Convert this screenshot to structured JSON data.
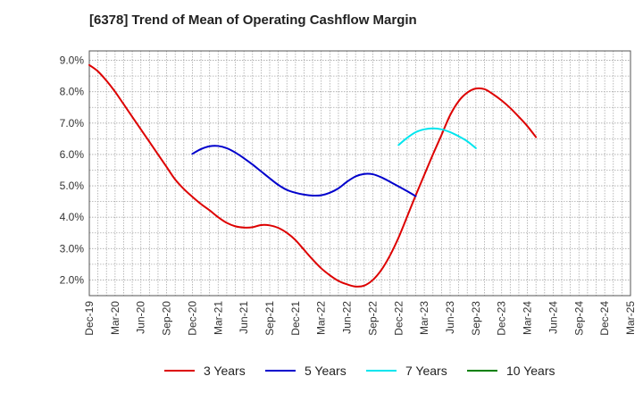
{
  "chart_data": {
    "type": "line",
    "title": "[6378]  Trend of Mean of Operating Cashflow Margin",
    "xlabel": "",
    "ylabel": "",
    "x_ticks": [
      "Dec-19",
      "Mar-20",
      "Jun-20",
      "Sep-20",
      "Dec-20",
      "Mar-21",
      "Jun-21",
      "Sep-21",
      "Dec-21",
      "Mar-22",
      "Jun-22",
      "Sep-22",
      "Dec-22",
      "Mar-23",
      "Jun-23",
      "Sep-23",
      "Dec-23",
      "Mar-24",
      "Jun-24",
      "Sep-24",
      "Dec-24",
      "Mar-25"
    ],
    "y_ticks": [
      "2.0%",
      "3.0%",
      "4.0%",
      "5.0%",
      "6.0%",
      "7.0%",
      "8.0%",
      "9.0%"
    ],
    "ylim": [
      1.5,
      9.3
    ],
    "grid": true,
    "legend_position": "bottom",
    "series": [
      {
        "name": "3 Years",
        "color": "#dd0000",
        "points": [
          [
            "Dec-19",
            8.85
          ],
          [
            "Jan-20",
            8.65
          ],
          [
            "Feb-20",
            8.35
          ],
          [
            "Mar-20",
            8.0
          ],
          [
            "Apr-20",
            7.6
          ],
          [
            "May-20",
            7.2
          ],
          [
            "Jun-20",
            6.8
          ],
          [
            "Jul-20",
            6.4
          ],
          [
            "Aug-20",
            6.0
          ],
          [
            "Sep-20",
            5.6
          ],
          [
            "Oct-20",
            5.2
          ],
          [
            "Nov-20",
            4.9
          ],
          [
            "Dec-20",
            4.65
          ],
          [
            "Jan-21",
            4.42
          ],
          [
            "Feb-21",
            4.22
          ],
          [
            "Mar-21",
            4.0
          ],
          [
            "Apr-21",
            3.82
          ],
          [
            "May-21",
            3.71
          ],
          [
            "Jun-21",
            3.67
          ],
          [
            "Jul-21",
            3.68
          ],
          [
            "Aug-21",
            3.75
          ],
          [
            "Sep-21",
            3.74
          ],
          [
            "Oct-21",
            3.66
          ],
          [
            "Nov-21",
            3.5
          ],
          [
            "Dec-21",
            3.27
          ],
          [
            "Jan-22",
            2.96
          ],
          [
            "Feb-22",
            2.65
          ],
          [
            "Mar-22",
            2.37
          ],
          [
            "Apr-22",
            2.15
          ],
          [
            "May-22",
            1.97
          ],
          [
            "Jun-22",
            1.86
          ],
          [
            "Jul-22",
            1.79
          ],
          [
            "Aug-22",
            1.82
          ],
          [
            "Sep-22",
            2.0
          ],
          [
            "Oct-22",
            2.32
          ],
          [
            "Nov-22",
            2.78
          ],
          [
            "Dec-22",
            3.35
          ],
          [
            "Jan-23",
            4.02
          ],
          [
            "Feb-23",
            4.7
          ],
          [
            "Mar-23",
            5.35
          ],
          [
            "Apr-23",
            6.0
          ],
          [
            "May-23",
            6.62
          ],
          [
            "Jun-23",
            7.25
          ],
          [
            "Jul-23",
            7.7
          ],
          [
            "Aug-23",
            7.97
          ],
          [
            "Sep-23",
            8.1
          ],
          [
            "Oct-23",
            8.08
          ],
          [
            "Nov-23",
            7.92
          ],
          [
            "Dec-23",
            7.72
          ],
          [
            "Jan-24",
            7.48
          ],
          [
            "Feb-24",
            7.2
          ],
          [
            "Mar-24",
            6.9
          ],
          [
            "Apr-24",
            6.55
          ]
        ]
      },
      {
        "name": "5 Years",
        "color": "#0000cc",
        "points": [
          [
            "Dec-20",
            6.02
          ],
          [
            "Jan-21",
            6.17
          ],
          [
            "Feb-21",
            6.26
          ],
          [
            "Mar-21",
            6.27
          ],
          [
            "Apr-21",
            6.2
          ],
          [
            "May-21",
            6.06
          ],
          [
            "Jun-21",
            5.88
          ],
          [
            "Jul-21",
            5.68
          ],
          [
            "Aug-21",
            5.46
          ],
          [
            "Sep-21",
            5.24
          ],
          [
            "Oct-21",
            5.03
          ],
          [
            "Nov-21",
            4.87
          ],
          [
            "Dec-21",
            4.78
          ],
          [
            "Jan-22",
            4.72
          ],
          [
            "Feb-22",
            4.69
          ],
          [
            "Mar-22",
            4.7
          ],
          [
            "Apr-22",
            4.78
          ],
          [
            "May-22",
            4.92
          ],
          [
            "Jun-22",
            5.13
          ],
          [
            "Jul-22",
            5.3
          ],
          [
            "Aug-22",
            5.38
          ],
          [
            "Sep-22",
            5.37
          ],
          [
            "Oct-22",
            5.27
          ],
          [
            "Nov-22",
            5.13
          ],
          [
            "Dec-22",
            4.98
          ],
          [
            "Jan-23",
            4.83
          ],
          [
            "Feb-23",
            4.67
          ]
        ]
      },
      {
        "name": "7 Years",
        "color": "#00e5ee",
        "points": [
          [
            "Dec-22",
            6.3
          ],
          [
            "Jan-23",
            6.53
          ],
          [
            "Feb-23",
            6.71
          ],
          [
            "Mar-23",
            6.8
          ],
          [
            "Apr-23",
            6.83
          ],
          [
            "May-23",
            6.8
          ],
          [
            "Jun-23",
            6.71
          ],
          [
            "Jul-23",
            6.58
          ],
          [
            "Aug-23",
            6.42
          ],
          [
            "Sep-23",
            6.2
          ]
        ]
      },
      {
        "name": "10 Years",
        "color": "#008000",
        "points": []
      }
    ]
  }
}
